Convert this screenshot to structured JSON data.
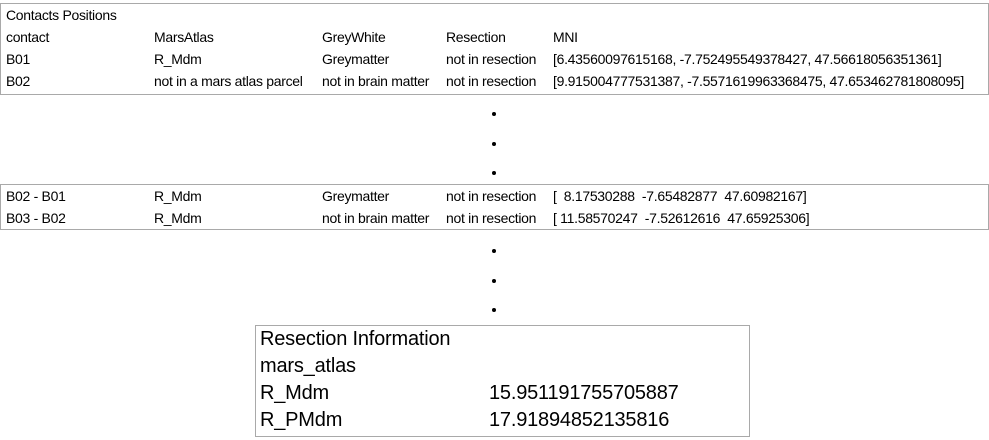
{
  "table1": {
    "title": "Contacts Positions",
    "headers": [
      "contact",
      "MarsAtlas",
      "GreyWhite",
      "Resection",
      "MNI"
    ],
    "rows": [
      [
        "B01",
        "R_Mdm",
        "Greymatter",
        "not in resection",
        "[6.43560097615168, -7.752495549378427, 47.56618056351361]"
      ],
      [
        "B02",
        "not in a mars atlas parcel",
        "not in brain matter",
        "not in resection",
        "[9.915004777531387, -7.5571619963368475, 47.653462781808095]"
      ]
    ]
  },
  "table2": {
    "rows": [
      [
        "B02 - B01",
        "R_Mdm",
        "Greymatter",
        "not in resection",
        "[  8.17530288  -7.65482877  47.60982167]"
      ],
      [
        "B03 - B02",
        "R_Mdm",
        "not in brain matter",
        "not in resection",
        "[ 11.58570247  -7.52612616  47.65925306]"
      ]
    ]
  },
  "resection": {
    "title": "Resection Information",
    "atlas": "mars_atlas",
    "rows": [
      [
        "R_Mdm",
        "15.951191755705887"
      ],
      [
        "R_PMdm",
        "17.91894852135816"
      ]
    ]
  }
}
